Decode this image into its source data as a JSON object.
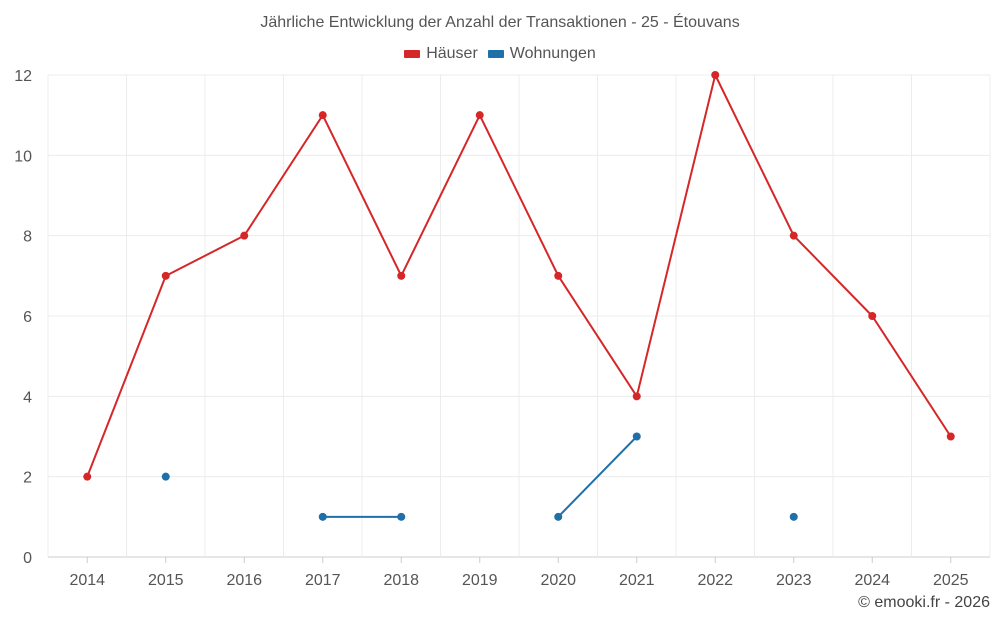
{
  "chart_data": {
    "type": "line",
    "title": "Jährliche Entwicklung der Anzahl der Transaktionen - 25 - Étouvans",
    "categories": [
      "2014",
      "2015",
      "2016",
      "2017",
      "2018",
      "2019",
      "2020",
      "2021",
      "2022",
      "2023",
      "2024",
      "2025"
    ],
    "series": [
      {
        "name": "Häuser",
        "color": "#d62728",
        "values": [
          2,
          7,
          8,
          11,
          7,
          11,
          7,
          4,
          12,
          8,
          6,
          3
        ]
      },
      {
        "name": "Wohnungen",
        "color": "#1f6fa8",
        "values": [
          null,
          2,
          null,
          1,
          1,
          null,
          1,
          3,
          null,
          1,
          null,
          null
        ]
      }
    ],
    "yticks": [
      0,
      2,
      4,
      6,
      8,
      10,
      12
    ],
    "ylim": [
      0,
      12
    ],
    "grid": true,
    "legend_position": "top-center",
    "credit": "© emooki.fr - 2026"
  }
}
